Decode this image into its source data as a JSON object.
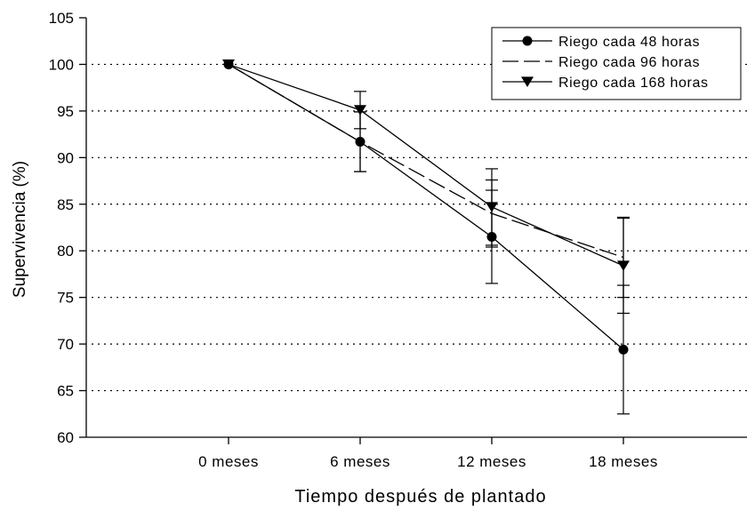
{
  "chart_data": {
    "type": "line",
    "xlabel": "Tiempo después de plantado",
    "ylabel": "Supervivencia (%)",
    "ylim": [
      60,
      105
    ],
    "y_ticks": [
      60,
      65,
      70,
      75,
      80,
      85,
      90,
      95,
      100,
      105
    ],
    "categories": [
      "0 meses",
      "6 meses",
      "12 meses",
      "18 meses"
    ],
    "grid": "horizontal dotted",
    "legend_position": "top-right",
    "series": [
      {
        "name": "Riego cada 48 horas",
        "marker": "circle",
        "line_style": "solid",
        "values": [
          100,
          91.7,
          81.5,
          69.4
        ],
        "error": [
          0,
          3.2,
          5.0,
          6.9
        ]
      },
      {
        "name": "Riego cada 96 horas",
        "marker": "none",
        "line_style": "dashed",
        "values": [
          100,
          91.7,
          84.0,
          79.3
        ],
        "error": [
          0,
          3.2,
          3.6,
          4.3
        ]
      },
      {
        "name": "Riego cada 168 horas",
        "marker": "triangle-down",
        "line_style": "solid",
        "values": [
          100,
          95.1,
          84.7,
          78.4
        ],
        "error": [
          0,
          2.0,
          4.1,
          5.1
        ]
      }
    ]
  }
}
